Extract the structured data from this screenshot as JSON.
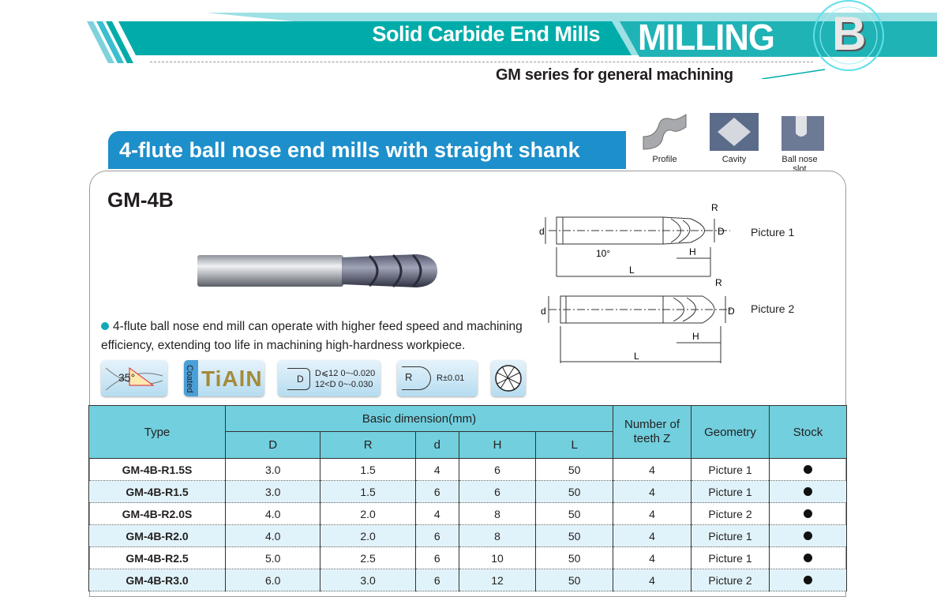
{
  "header": {
    "section": "Solid Carbide End Mills",
    "category": "MILLING",
    "category_letter": "B",
    "series": "GM series for general machining"
  },
  "title": "4-flute ball nose end mills with straight shank",
  "applications": [
    {
      "label": "Profile",
      "icon": "profile-icon"
    },
    {
      "label": "Cavity",
      "icon": "cavity-icon"
    },
    {
      "label": "Ball nose slot",
      "icon": "ball-nose-slot-icon"
    }
  ],
  "product": {
    "model": "GM-4B",
    "description": "4-flute ball nose end mill can operate with higher feed speed and machining efficiency, extending too life in machining high-hardness workpiece."
  },
  "diagrams": {
    "picture1": {
      "label": "Picture 1",
      "R": "R",
      "D": "D",
      "d": "d",
      "H": "H",
      "L": "L",
      "angle": "10°"
    },
    "picture2": {
      "label": "Picture 2",
      "R": "R",
      "D": "D",
      "d": "d",
      "H": "H",
      "L": "L"
    }
  },
  "features": {
    "helix": "35°",
    "coated": "Coated",
    "coating": "TiAlN",
    "tolerance_D": "D",
    "tol1": "D⩽12  0~-0.020",
    "tol2": "12<D  0~-0.030",
    "radius_R": "R",
    "radius_tol": "R±0.01"
  },
  "table": {
    "headers": {
      "type": "Type",
      "basic": "Basic dimension(mm)",
      "D": "D",
      "R": "R",
      "d": "d",
      "H": "H",
      "L": "L",
      "teeth": "Number of teeth Z",
      "geometry": "Geometry",
      "stock": "Stock"
    },
    "rows": [
      {
        "type": "GM-4B-R1.5S",
        "D": "3.0",
        "R": "1.5",
        "d": "4",
        "H": "6",
        "L": "50",
        "Z": "4",
        "geometry": "Picture 1",
        "stock": true
      },
      {
        "type": "GM-4B-R1.5",
        "D": "3.0",
        "R": "1.5",
        "d": "6",
        "H": "6",
        "L": "50",
        "Z": "4",
        "geometry": "Picture 1",
        "stock": true
      },
      {
        "type": "GM-4B-R2.0S",
        "D": "4.0",
        "R": "2.0",
        "d": "4",
        "H": "8",
        "L": "50",
        "Z": "4",
        "geometry": "Picture 2",
        "stock": true
      },
      {
        "type": "GM-4B-R2.0",
        "D": "4.0",
        "R": "2.0",
        "d": "6",
        "H": "8",
        "L": "50",
        "Z": "4",
        "geometry": "Picture 1",
        "stock": true
      },
      {
        "type": "GM-4B-R2.5",
        "D": "5.0",
        "R": "2.5",
        "d": "6",
        "H": "10",
        "L": "50",
        "Z": "4",
        "geometry": "Picture 1",
        "stock": true
      },
      {
        "type": "GM-4B-R3.0",
        "D": "6.0",
        "R": "3.0",
        "d": "6",
        "H": "12",
        "L": "50",
        "Z": "4",
        "geometry": "Picture 2",
        "stock": true
      }
    ]
  },
  "colors": {
    "teal": "#00aca9",
    "title_blue": "#1d8fcb",
    "header_cyan": "#72cfdd",
    "row_alt": "#e1f3fa"
  }
}
